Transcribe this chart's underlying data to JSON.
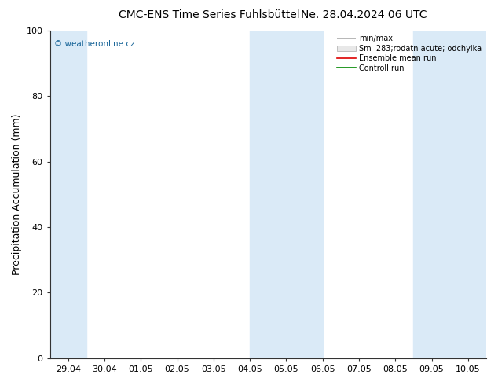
{
  "title": "CMC-ENS Time Series Fuhlsbüttel",
  "title2": "Ne. 28.04.2024 06 UTC",
  "ylabel": "Precipitation Accumulation (mm)",
  "xlim": [
    0,
    11
  ],
  "ylim": [
    0,
    100
  ],
  "xtick_labels": [
    "29.04",
    "30.04",
    "01.05",
    "02.05",
    "03.05",
    "04.05",
    "05.05",
    "06.05",
    "07.05",
    "08.05",
    "09.05",
    "10.05"
  ],
  "ytick_values": [
    0,
    20,
    40,
    60,
    80,
    100
  ],
  "shaded_bands": [
    {
      "xmin": -0.5,
      "xmax": 0.5
    },
    {
      "xmin": 5.0,
      "xmax": 7.0
    },
    {
      "xmin": 9.5,
      "xmax": 11.5
    }
  ],
  "shaded_color": "#daeaf7",
  "watermark": "© weatheronline.cz",
  "watermark_color": "#1a6699",
  "legend_labels": [
    "min/max",
    "Sm  283;rodatn acute; odchylka",
    "Ensemble mean run",
    "Controll run"
  ],
  "legend_colors_line": [
    "#aaaaaa",
    "#cccccc",
    "#dd0000",
    "#008800"
  ],
  "bg_color": "#ffffff",
  "title_fontsize": 10,
  "tick_fontsize": 8,
  "ylabel_fontsize": 9
}
